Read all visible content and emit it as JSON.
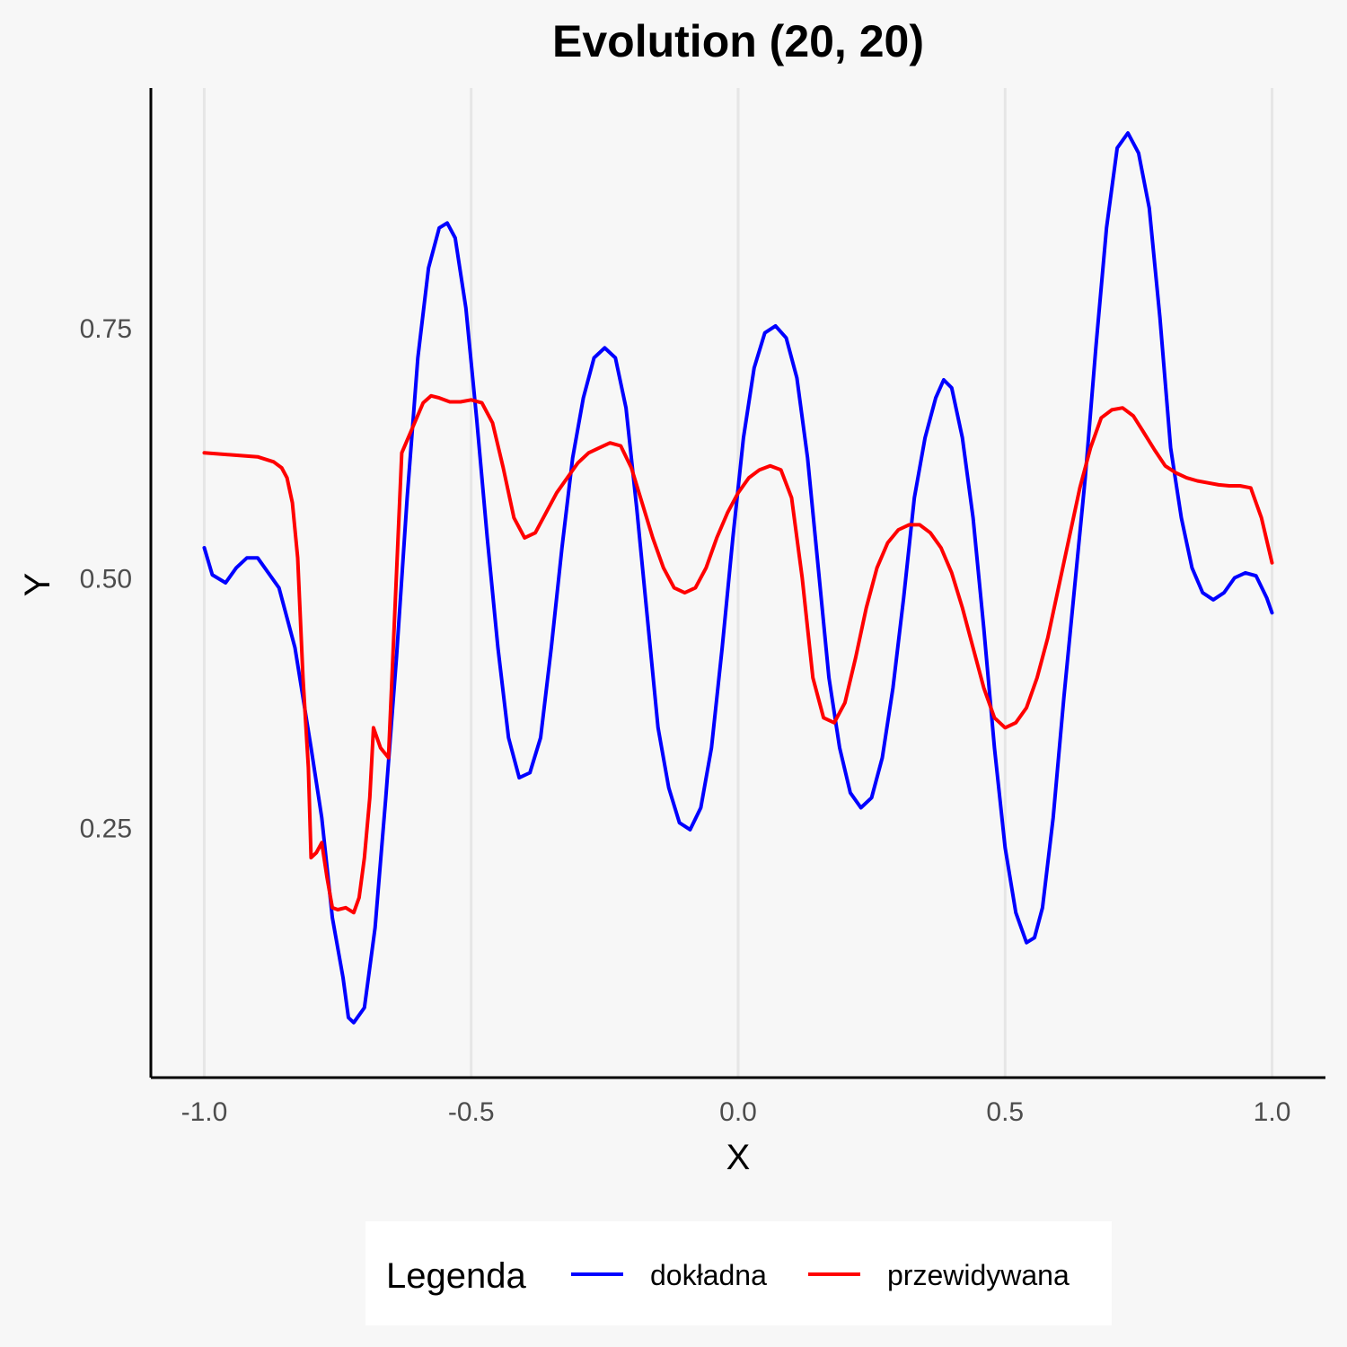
{
  "chart_data": {
    "type": "line",
    "title": "Evolution (20, 20)",
    "xlabel": "X",
    "ylabel": "Y",
    "xlim": [
      -1.1,
      1.1
    ],
    "ylim": [
      0.0,
      0.99
    ],
    "x_ticks": [
      -1.0,
      -0.5,
      0.0,
      0.5,
      1.0
    ],
    "x_tick_labels": [
      "-1.0",
      "-0.5",
      "0.0",
      "0.5",
      "1.0"
    ],
    "y_ticks": [
      0.25,
      0.5,
      0.75
    ],
    "y_tick_labels": [
      "0.25",
      "0.50",
      "0.75"
    ],
    "grid": "vertical major gridlines only",
    "legend": {
      "title": "Legenda",
      "placement": "bottom",
      "entries": [
        {
          "label": "dokładna",
          "color": "#0000ff"
        },
        {
          "label": "przewidywana",
          "color": "#ff0000"
        }
      ]
    },
    "series": [
      {
        "name": "dokładna",
        "color": "#0000ff",
        "points": [
          [
            -1.0,
            0.53
          ],
          [
            -0.985,
            0.503
          ],
          [
            -0.96,
            0.495
          ],
          [
            -0.94,
            0.51
          ],
          [
            -0.92,
            0.52
          ],
          [
            -0.9,
            0.52
          ],
          [
            -0.86,
            0.49
          ],
          [
            -0.83,
            0.43
          ],
          [
            -0.8,
            0.33
          ],
          [
            -0.78,
            0.26
          ],
          [
            -0.76,
            0.16
          ],
          [
            -0.74,
            0.1
          ],
          [
            -0.73,
            0.06
          ],
          [
            -0.72,
            0.055
          ],
          [
            -0.7,
            0.07
          ],
          [
            -0.68,
            0.15
          ],
          [
            -0.66,
            0.28
          ],
          [
            -0.64,
            0.42
          ],
          [
            -0.62,
            0.58
          ],
          [
            -0.6,
            0.72
          ],
          [
            -0.58,
            0.81
          ],
          [
            -0.56,
            0.85
          ],
          [
            -0.545,
            0.855
          ],
          [
            -0.53,
            0.84
          ],
          [
            -0.51,
            0.77
          ],
          [
            -0.49,
            0.66
          ],
          [
            -0.47,
            0.54
          ],
          [
            -0.45,
            0.43
          ],
          [
            -0.43,
            0.34
          ],
          [
            -0.41,
            0.3
          ],
          [
            -0.39,
            0.305
          ],
          [
            -0.37,
            0.34
          ],
          [
            -0.35,
            0.43
          ],
          [
            -0.33,
            0.53
          ],
          [
            -0.31,
            0.62
          ],
          [
            -0.29,
            0.68
          ],
          [
            -0.27,
            0.72
          ],
          [
            -0.25,
            0.73
          ],
          [
            -0.23,
            0.72
          ],
          [
            -0.21,
            0.67
          ],
          [
            -0.19,
            0.57
          ],
          [
            -0.17,
            0.46
          ],
          [
            -0.15,
            0.35
          ],
          [
            -0.13,
            0.29
          ],
          [
            -0.11,
            0.255
          ],
          [
            -0.09,
            0.248
          ],
          [
            -0.07,
            0.27
          ],
          [
            -0.05,
            0.33
          ],
          [
            -0.03,
            0.43
          ],
          [
            -0.01,
            0.54
          ],
          [
            0.01,
            0.64
          ],
          [
            0.03,
            0.71
          ],
          [
            0.05,
            0.745
          ],
          [
            0.07,
            0.752
          ],
          [
            0.09,
            0.74
          ],
          [
            0.11,
            0.7
          ],
          [
            0.13,
            0.62
          ],
          [
            0.15,
            0.51
          ],
          [
            0.17,
            0.4
          ],
          [
            0.19,
            0.33
          ],
          [
            0.21,
            0.285
          ],
          [
            0.23,
            0.27
          ],
          [
            0.25,
            0.28
          ],
          [
            0.27,
            0.32
          ],
          [
            0.29,
            0.39
          ],
          [
            0.31,
            0.48
          ],
          [
            0.33,
            0.58
          ],
          [
            0.35,
            0.64
          ],
          [
            0.37,
            0.68
          ],
          [
            0.385,
            0.698
          ],
          [
            0.4,
            0.69
          ],
          [
            0.42,
            0.64
          ],
          [
            0.44,
            0.56
          ],
          [
            0.46,
            0.45
          ],
          [
            0.48,
            0.33
          ],
          [
            0.5,
            0.23
          ],
          [
            0.52,
            0.165
          ],
          [
            0.54,
            0.135
          ],
          [
            0.555,
            0.14
          ],
          [
            0.57,
            0.17
          ],
          [
            0.59,
            0.26
          ],
          [
            0.61,
            0.38
          ],
          [
            0.63,
            0.49
          ],
          [
            0.65,
            0.6
          ],
          [
            0.67,
            0.73
          ],
          [
            0.69,
            0.85
          ],
          [
            0.71,
            0.93
          ],
          [
            0.73,
            0.945
          ],
          [
            0.75,
            0.925
          ],
          [
            0.77,
            0.87
          ],
          [
            0.79,
            0.76
          ],
          [
            0.81,
            0.63
          ],
          [
            0.83,
            0.56
          ],
          [
            0.85,
            0.51
          ],
          [
            0.87,
            0.485
          ],
          [
            0.89,
            0.478
          ],
          [
            0.91,
            0.485
          ],
          [
            0.93,
            0.5
          ],
          [
            0.95,
            0.505
          ],
          [
            0.97,
            0.502
          ],
          [
            0.99,
            0.48
          ],
          [
            1.0,
            0.465
          ]
        ]
      },
      {
        "name": "przewidywana",
        "color": "#ff0000",
        "points": [
          [
            -1.0,
            0.625
          ],
          [
            -0.95,
            0.623
          ],
          [
            -0.9,
            0.621
          ],
          [
            -0.87,
            0.616
          ],
          [
            -0.855,
            0.61
          ],
          [
            -0.845,
            0.6
          ],
          [
            -0.835,
            0.575
          ],
          [
            -0.825,
            0.52
          ],
          [
            -0.815,
            0.4
          ],
          [
            -0.805,
            0.31
          ],
          [
            -0.8,
            0.22
          ],
          [
            -0.79,
            0.225
          ],
          [
            -0.78,
            0.235
          ],
          [
            -0.77,
            0.2
          ],
          [
            -0.76,
            0.17
          ],
          [
            -0.75,
            0.168
          ],
          [
            -0.735,
            0.17
          ],
          [
            -0.72,
            0.165
          ],
          [
            -0.71,
            0.18
          ],
          [
            -0.7,
            0.22
          ],
          [
            -0.69,
            0.28
          ],
          [
            -0.683,
            0.35
          ],
          [
            -0.67,
            0.33
          ],
          [
            -0.655,
            0.32
          ],
          [
            -0.63,
            0.625
          ],
          [
            -0.61,
            0.65
          ],
          [
            -0.59,
            0.675
          ],
          [
            -0.575,
            0.682
          ],
          [
            -0.56,
            0.68
          ],
          [
            -0.54,
            0.676
          ],
          [
            -0.52,
            0.676
          ],
          [
            -0.5,
            0.678
          ],
          [
            -0.48,
            0.675
          ],
          [
            -0.46,
            0.655
          ],
          [
            -0.44,
            0.61
          ],
          [
            -0.42,
            0.56
          ],
          [
            -0.4,
            0.54
          ],
          [
            -0.38,
            0.545
          ],
          [
            -0.36,
            0.565
          ],
          [
            -0.34,
            0.585
          ],
          [
            -0.32,
            0.6
          ],
          [
            -0.3,
            0.615
          ],
          [
            -0.28,
            0.625
          ],
          [
            -0.26,
            0.63
          ],
          [
            -0.24,
            0.635
          ],
          [
            -0.22,
            0.632
          ],
          [
            -0.2,
            0.61
          ],
          [
            -0.18,
            0.575
          ],
          [
            -0.16,
            0.54
          ],
          [
            -0.14,
            0.51
          ],
          [
            -0.12,
            0.49
          ],
          [
            -0.1,
            0.485
          ],
          [
            -0.08,
            0.49
          ],
          [
            -0.06,
            0.51
          ],
          [
            -0.04,
            0.54
          ],
          [
            -0.02,
            0.565
          ],
          [
            0.0,
            0.585
          ],
          [
            0.02,
            0.6
          ],
          [
            0.04,
            0.608
          ],
          [
            0.06,
            0.612
          ],
          [
            0.08,
            0.608
          ],
          [
            0.1,
            0.58
          ],
          [
            0.12,
            0.5
          ],
          [
            0.14,
            0.4
          ],
          [
            0.16,
            0.36
          ],
          [
            0.18,
            0.355
          ],
          [
            0.2,
            0.375
          ],
          [
            0.22,
            0.42
          ],
          [
            0.24,
            0.47
          ],
          [
            0.26,
            0.51
          ],
          [
            0.28,
            0.535
          ],
          [
            0.3,
            0.548
          ],
          [
            0.32,
            0.553
          ],
          [
            0.34,
            0.553
          ],
          [
            0.36,
            0.545
          ],
          [
            0.38,
            0.53
          ],
          [
            0.4,
            0.505
          ],
          [
            0.42,
            0.47
          ],
          [
            0.44,
            0.43
          ],
          [
            0.46,
            0.39
          ],
          [
            0.48,
            0.36
          ],
          [
            0.5,
            0.35
          ],
          [
            0.52,
            0.355
          ],
          [
            0.54,
            0.37
          ],
          [
            0.56,
            0.4
          ],
          [
            0.58,
            0.44
          ],
          [
            0.6,
            0.49
          ],
          [
            0.62,
            0.54
          ],
          [
            0.64,
            0.59
          ],
          [
            0.66,
            0.63
          ],
          [
            0.68,
            0.66
          ],
          [
            0.7,
            0.668
          ],
          [
            0.72,
            0.67
          ],
          [
            0.74,
            0.662
          ],
          [
            0.76,
            0.645
          ],
          [
            0.78,
            0.628
          ],
          [
            0.8,
            0.612
          ],
          [
            0.82,
            0.605
          ],
          [
            0.84,
            0.6
          ],
          [
            0.86,
            0.597
          ],
          [
            0.88,
            0.595
          ],
          [
            0.9,
            0.593
          ],
          [
            0.92,
            0.592
          ],
          [
            0.94,
            0.592
          ],
          [
            0.96,
            0.59
          ],
          [
            0.98,
            0.56
          ],
          [
            1.0,
            0.515
          ]
        ]
      }
    ]
  }
}
